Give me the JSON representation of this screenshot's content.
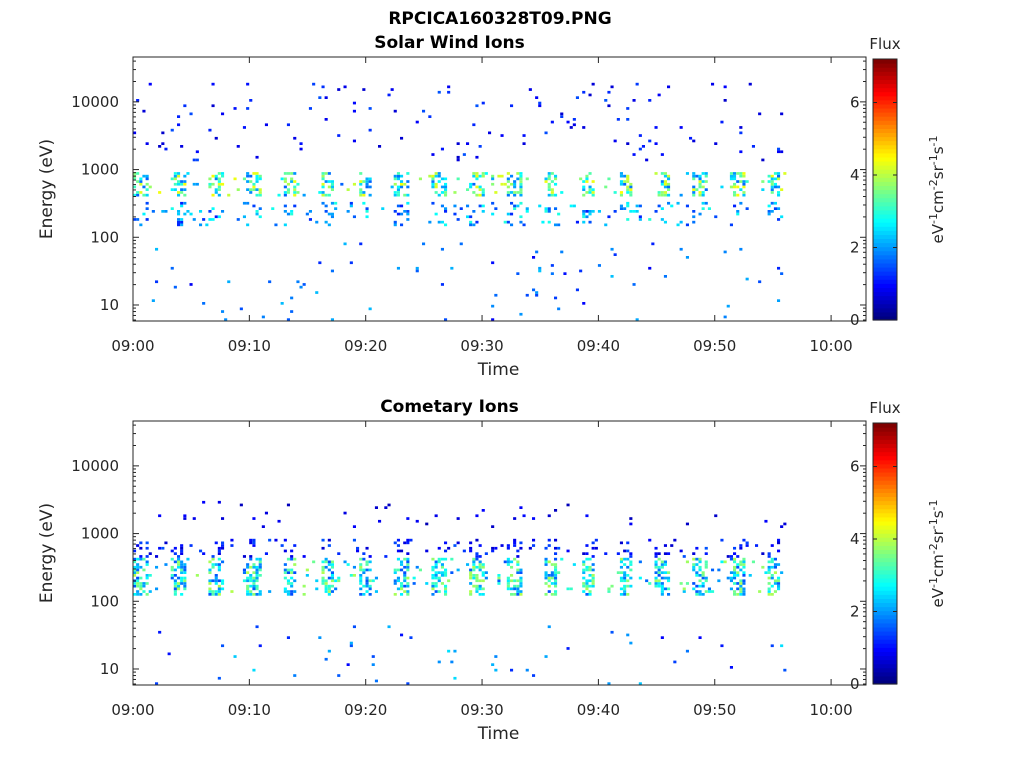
{
  "figure": {
    "filename": "RPCICA160328T09.PNG"
  },
  "colors": {
    "colormap": "jet",
    "axis": "#262626",
    "background": "#ffffff"
  },
  "chart_data": [
    {
      "type": "heatmap",
      "title": "Solar Wind Ions",
      "xlabel": "Time",
      "ylabel": "Energy (eV)",
      "x_ticks": [
        "09:00",
        "09:10",
        "09:20",
        "09:30",
        "09:40",
        "09:50",
        "10:00"
      ],
      "xlim": [
        "09:00",
        "10:03"
      ],
      "y_scale": "log",
      "y_ticks": [
        "10",
        "100",
        "1000",
        "10000"
      ],
      "ylim": [
        5.8,
        46000
      ],
      "colorbar": {
        "title": "Flux",
        "label": "eV-1cm-2sr-1s-1",
        "range": [
          0,
          7.2
        ],
        "ticks": [
          "0",
          "2",
          "4",
          "6"
        ]
      },
      "data_time_range": [
        "09:00",
        "09:56"
      ],
      "features": [
        {
          "description": "periodic main solar wind beam",
          "energy_range_eV": [
            400,
            900
          ],
          "peak_flux": 4.5,
          "period_min": 3.2
        },
        {
          "description": "secondary beam",
          "energy_range_eV": [
            150,
            320
          ],
          "peak_flux": 3
        },
        {
          "description": "sparse high energy counts",
          "energy_range_eV": [
            1300,
            20000
          ],
          "peak_flux": 1.5
        },
        {
          "description": "sparse low energy counts",
          "energy_range_eV": [
            6,
            80
          ],
          "peak_flux": 2.3
        }
      ]
    },
    {
      "type": "heatmap",
      "title": "Cometary Ions",
      "xlabel": "Time",
      "ylabel": "Energy (eV)",
      "x_ticks": [
        "09:00",
        "09:10",
        "09:20",
        "09:30",
        "09:40",
        "09:50",
        "10:00"
      ],
      "xlim": [
        "09:00",
        "10:03"
      ],
      "y_scale": "log",
      "y_ticks": [
        "10",
        "100",
        "1000",
        "10000"
      ],
      "ylim": [
        5.8,
        46000
      ],
      "colorbar": {
        "title": "Flux",
        "label": "eV-1cm-2sr-1s-1",
        "range": [
          0,
          7.2
        ],
        "ticks": [
          "0",
          "2",
          "4",
          "6"
        ]
      },
      "data_time_range": [
        "09:00",
        "09:56"
      ],
      "features": [
        {
          "description": "periodic cometary ion bursts",
          "energy_range_eV": [
            120,
            450
          ],
          "peak_flux": 4,
          "period_min": 3.2
        },
        {
          "description": "upper extension of bursts",
          "energy_range_eV": [
            450,
            800
          ],
          "peak_flux": 1.5
        },
        {
          "description": "sparse high energy counts",
          "energy_range_eV": [
            1200,
            3000
          ],
          "peak_flux": 1
        },
        {
          "description": "sparse low energy counts",
          "energy_range_eV": [
            6,
            50
          ],
          "peak_flux": 2.5
        }
      ]
    }
  ]
}
